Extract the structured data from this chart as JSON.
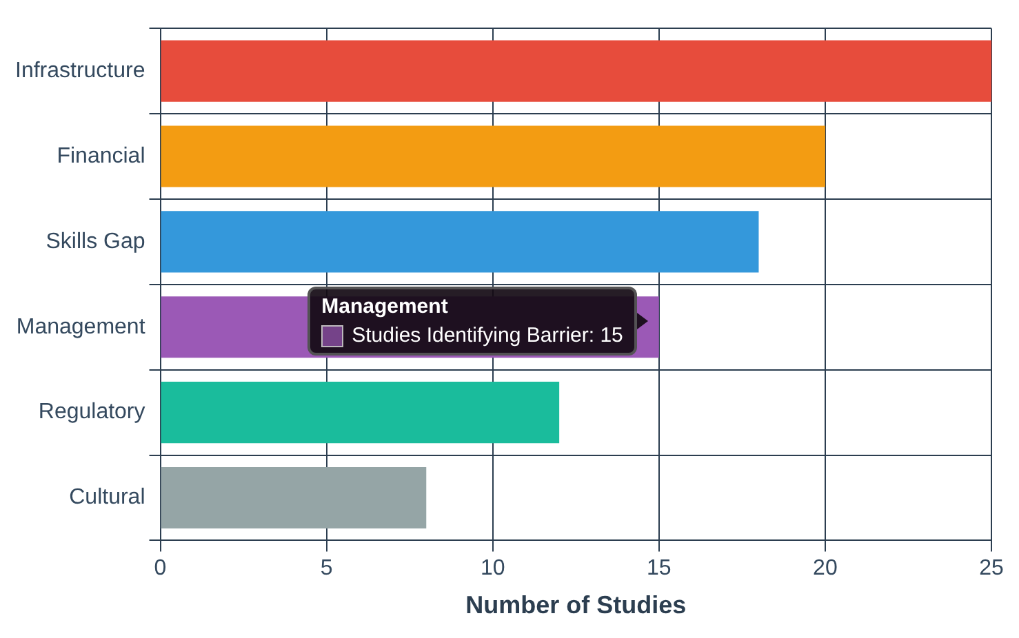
{
  "chart_data": {
    "type": "bar",
    "orientation": "horizontal",
    "xlabel": "Number of Studies",
    "categories": [
      "Infrastructure",
      "Financial",
      "Skills Gap",
      "Management",
      "Regulatory",
      "Cultural"
    ],
    "values": [
      25,
      20,
      18,
      15,
      12,
      8
    ],
    "colors": [
      "#e74c3c",
      "#f39c12",
      "#3498db",
      "#9b59b6",
      "#1abc9c",
      "#95a5a6"
    ],
    "xlim": [
      0,
      25
    ],
    "xticks": [
      0,
      5,
      10,
      15,
      20,
      25
    ],
    "grid": true,
    "legend": false,
    "annotations": [
      {
        "text": "Studies Identifying Barrier: 15",
        "x": 15,
        "y": "Management"
      }
    ]
  }
}
